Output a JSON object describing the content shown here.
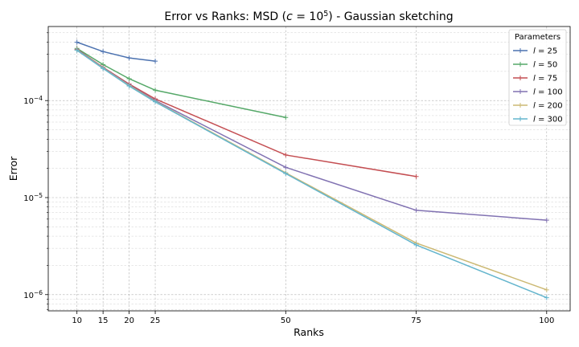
{
  "chart_data": {
    "type": "line",
    "title": "Error vs Ranks: MSD (c = 10^5) - Gaussian sketching",
    "title_parts": {
      "prefix": "Error vs Ranks: MSD (",
      "c_var": "c",
      "eq": " = 10",
      "exp": "5",
      "suffix": ") - Gaussian sketching"
    },
    "xlabel": "Ranks",
    "ylabel": "Error",
    "x_ticks": [
      10,
      15,
      20,
      25,
      50,
      75,
      100
    ],
    "xlim": [
      4.5,
      104.5
    ],
    "ylim": [
      6.8e-07,
      0.00058
    ],
    "y_scale": "log",
    "y_tick_labels": [
      {
        "value": 1e-06,
        "base": "10",
        "exp": "−6"
      },
      {
        "value": 1e-05,
        "base": "10",
        "exp": "−5"
      },
      {
        "value": 0.0001,
        "base": "10",
        "exp": "−4"
      }
    ],
    "grid": true,
    "legend": {
      "title": "Parameters",
      "placement": "top-right"
    },
    "series": [
      {
        "name": "l = 25",
        "label_var": "l",
        "label_eq": " = 25",
        "color": "#4c72b0",
        "x": [
          10,
          15,
          20,
          25
        ],
        "y": [
          0.0004,
          0.00032,
          0.000275,
          0.000255
        ]
      },
      {
        "name": "l = 50",
        "label_var": "l",
        "label_eq": " = 50",
        "color": "#55a868",
        "x": [
          10,
          15,
          20,
          25,
          50
        ],
        "y": [
          0.000345,
          0.000235,
          0.000168,
          0.000128,
          6.7e-05
        ]
      },
      {
        "name": "l = 75",
        "label_var": "l",
        "label_eq": " = 75",
        "color": "#c44e52",
        "x": [
          10,
          15,
          20,
          25,
          50,
          75
        ],
        "y": [
          0.000338,
          0.00022,
          0.000148,
          0.000104,
          2.75e-05,
          1.65e-05
        ]
      },
      {
        "name": "l = 100",
        "label_var": "l",
        "label_eq": " = 100",
        "color": "#8172b2",
        "x": [
          10,
          15,
          20,
          25,
          50,
          75,
          100
        ],
        "y": [
          0.000335,
          0.000218,
          0.000145,
          0.0001,
          2.05e-05,
          7.4e-06,
          5.85e-06
        ]
      },
      {
        "name": "l = 200",
        "label_var": "l",
        "label_eq": " = 200",
        "color": "#ccb974",
        "x": [
          10,
          15,
          20,
          25,
          50,
          75,
          100
        ],
        "y": [
          0.000332,
          0.000216,
          0.000143,
          9.8e-05,
          1.8e-05,
          3.4e-06,
          1.12e-06
        ]
      },
      {
        "name": "l = 300",
        "label_var": "l",
        "label_eq": " = 300",
        "color": "#64b5cd",
        "x": [
          10,
          15,
          20,
          25,
          50,
          75,
          100
        ],
        "y": [
          0.00033,
          0.000214,
          0.000141,
          9.7e-05,
          1.77e-05,
          3.25e-06,
          9.3e-07
        ]
      }
    ]
  }
}
